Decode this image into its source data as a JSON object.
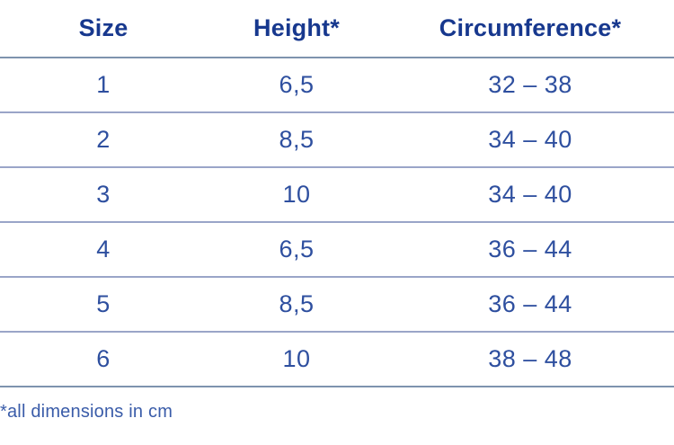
{
  "chart_data": {
    "type": "table",
    "title": "",
    "columns": [
      "Size",
      "Height*",
      "Circumference*"
    ],
    "rows": [
      [
        "1",
        "6,5",
        "32 – 38"
      ],
      [
        "2",
        "8,5",
        "34 – 40"
      ],
      [
        "3",
        "10",
        "34 – 40"
      ],
      [
        "4",
        "6,5",
        "36 – 44"
      ],
      [
        "5",
        "8,5",
        "36 – 44"
      ],
      [
        "6",
        "10",
        "38 – 48"
      ]
    ],
    "footnote": "*all dimensions in cm",
    "layout": {
      "grid": "horizontal-row-dividers-only",
      "column_alignment": "center",
      "footnote_alignment": "left"
    }
  },
  "colors": {
    "header_text": "#17388e",
    "value_text": "#2e4f9f",
    "footnote_text": "#3a5ca9",
    "divider_inner": "#9aa5c8",
    "divider_strong": "#7e93ae",
    "bg": "#ffffff"
  }
}
